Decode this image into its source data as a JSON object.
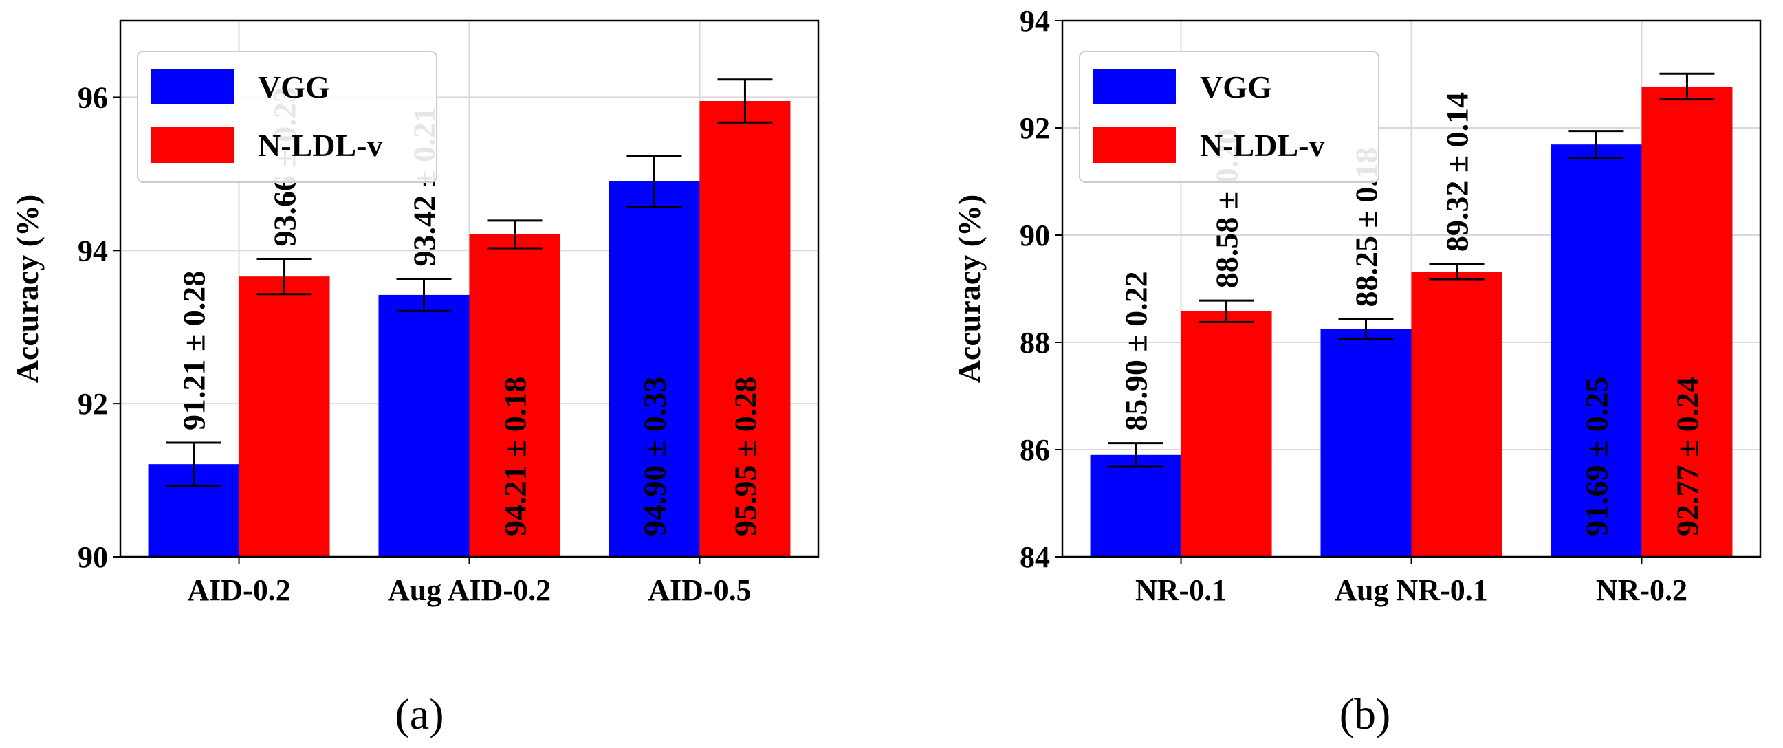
{
  "chart_data": [
    {
      "type": "bar",
      "panel_label": "(a)",
      "ylabel": "Accuracy (%)",
      "xlabel": "",
      "ylim": [
        90,
        97
      ],
      "yticks": [
        "90",
        "92",
        "94",
        "96"
      ],
      "categories": [
        "AID-0.2",
        "Aug AID-0.2",
        "AID-0.5"
      ],
      "grid": true,
      "legend": "top-left",
      "series": [
        {
          "name": "VGG",
          "color": "#0000ff",
          "values": [
            91.21,
            93.42,
            94.9
          ],
          "errors": [
            0.28,
            0.21,
            0.33
          ],
          "labels": [
            "91.21 ± 0.28",
            "93.42 ± 0.21",
            "94.90 ± 0.33"
          ]
        },
        {
          "name": "N-LDL-v",
          "color": "#ff0000",
          "values": [
            93.66,
            94.21,
            95.95
          ],
          "errors": [
            0.23,
            0.18,
            0.28
          ],
          "labels": [
            "93.66 ± 0.23",
            "94.21 ± 0.18",
            "95.95 ± 0.28"
          ]
        }
      ]
    },
    {
      "type": "bar",
      "panel_label": "(b)",
      "ylabel": "Accuracy (%)",
      "xlabel": "",
      "ylim": [
        84,
        94
      ],
      "yticks": [
        "84",
        "86",
        "88",
        "90",
        "92",
        "94"
      ],
      "categories": [
        "NR-0.1",
        "Aug NR-0.1",
        "NR-0.2"
      ],
      "grid": true,
      "legend": "top-left",
      "series": [
        {
          "name": "VGG",
          "color": "#0000ff",
          "values": [
            85.9,
            88.25,
            91.69
          ],
          "errors": [
            0.22,
            0.18,
            0.25
          ],
          "labels": [
            "85.90 ± 0.22",
            "88.25 ± 0.18",
            "91.69 ± 0.25"
          ]
        },
        {
          "name": "N-LDL-v",
          "color": "#ff0000",
          "values": [
            88.58,
            89.32,
            92.77
          ],
          "errors": [
            0.2,
            0.14,
            0.24
          ],
          "labels": [
            "88.58 ± 0.20",
            "89.32 ± 0.14",
            "92.77 ± 0.24"
          ]
        }
      ]
    }
  ]
}
